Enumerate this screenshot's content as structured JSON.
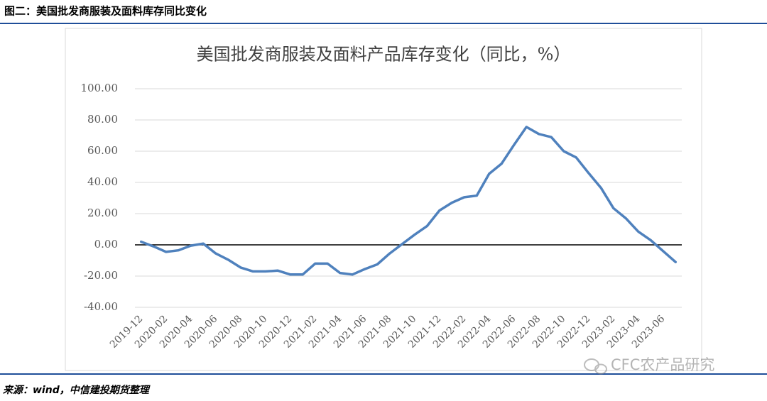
{
  "header": {
    "title": "图二：美国批发商服装及面料库存同比变化"
  },
  "chart_data": {
    "type": "line",
    "title": "美国批发商服装及面料产品库存变化（同比，%）",
    "categories": [
      "2019-12",
      null,
      "2020-02",
      null,
      "2020-04",
      null,
      "2020-06",
      null,
      "2020-08",
      null,
      "2020-10",
      null,
      "2020-12",
      null,
      "2021-02",
      null,
      "2021-04",
      null,
      "2021-06",
      null,
      "2021-08",
      null,
      "2021-10",
      null,
      "2021-12",
      null,
      "2022-02",
      null,
      "2022-04",
      null,
      "2022-06",
      null,
      "2022-08",
      null,
      "2022-10",
      null,
      "2022-12",
      null,
      "2023-02",
      null,
      "2023-04",
      null,
      "2023-06",
      null
    ],
    "series": [
      {
        "color": "#4f81bd",
        "values": [
          2,
          -1,
          -4.5,
          -3.5,
          -0.5,
          0.8,
          -5.5,
          -9.5,
          -14.5,
          -17,
          -17,
          -16.5,
          -19,
          -19,
          -12,
          -12,
          -18,
          -19,
          -15.5,
          -12.5,
          -5.5,
          0.5,
          6.5,
          12,
          22,
          27,
          30.5,
          31.5,
          45.5,
          52,
          64,
          75.5,
          71,
          69,
          60,
          56,
          46,
          36.5,
          23.5,
          17,
          8.5,
          3,
          -4,
          -11
        ]
      }
    ],
    "ylim": [
      -40,
      100
    ],
    "yticks": [
      {
        "value": -40,
        "label": "-40.00"
      },
      {
        "value": -20,
        "label": "-20.00"
      },
      {
        "value": 0,
        "label": "0.00"
      },
      {
        "value": 20,
        "label": "20.00"
      },
      {
        "value": 40,
        "label": "40.00"
      },
      {
        "value": 60,
        "label": "60.00"
      },
      {
        "value": 80,
        "label": "80.00"
      },
      {
        "value": 100,
        "label": "100.00"
      }
    ],
    "grid": true
  },
  "footer": {
    "source": "来源：wind，中信建投期货整理",
    "watermark": "CFC农产品研究"
  }
}
